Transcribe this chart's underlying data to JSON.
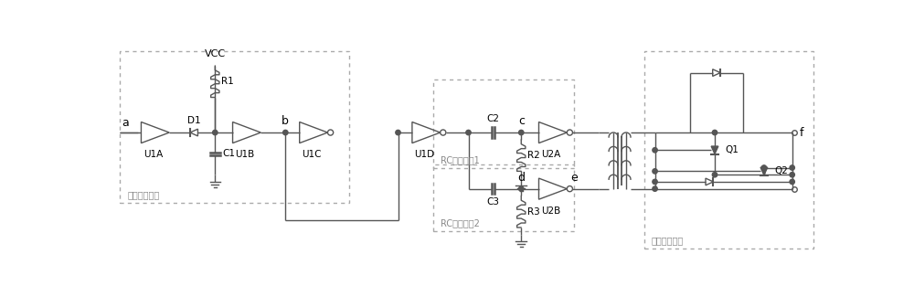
{
  "bg_color": "#ffffff",
  "line_color": "#555555",
  "text_color": "#000000",
  "box_color": "#aaaaaa",
  "figsize": [
    10.0,
    3.36
  ],
  "dpi": 100,
  "label_left_box": "脉宽拓展电路",
  "label_rc1": "RC微分电路1",
  "label_rc2": "RC微分电路2",
  "label_right_box": "陡边输出电路"
}
